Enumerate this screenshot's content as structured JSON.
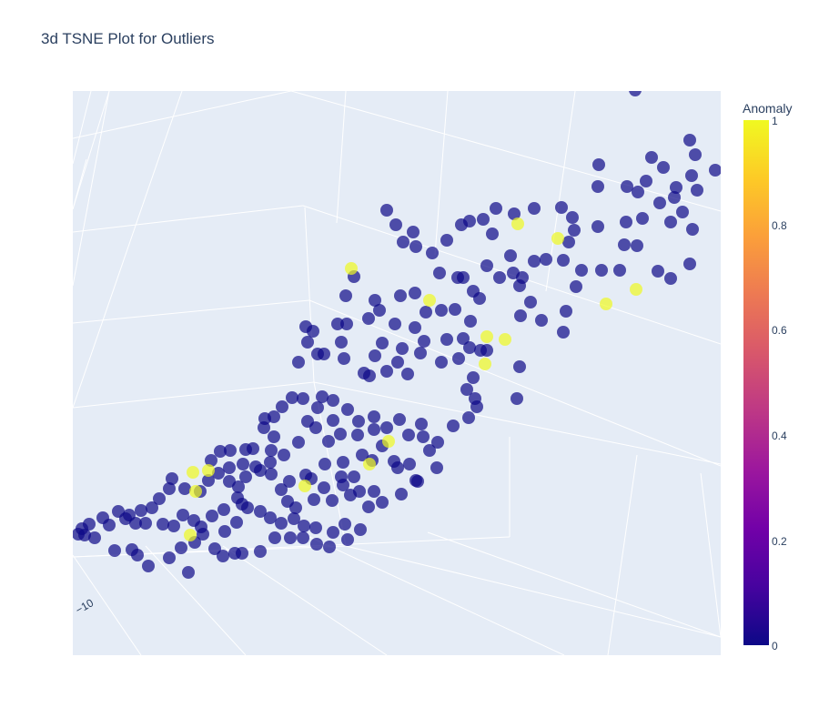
{
  "chart_data": {
    "type": "scatter",
    "title": "3d TSNE Plot for Outliers",
    "projection": "3d",
    "axis_tick_labels": [
      "−10"
    ],
    "colorscale": "plasma",
    "colorbar": {
      "title": "Anomaly",
      "range": [
        0,
        1
      ],
      "ticks": [
        "1",
        "0.8",
        "0.6",
        "0.4",
        "0.2",
        "0"
      ]
    },
    "background_color": "#e5ecf6",
    "grid": true,
    "marker_opacity": 0.7,
    "series": [
      {
        "name": "",
        "anomaly": 0,
        "points": [
          [
            698,
            99
          ],
          [
            758,
            154
          ],
          [
            716,
            173
          ],
          [
            658,
            181
          ],
          [
            729,
            184
          ],
          [
            764,
            170
          ],
          [
            786,
            187
          ],
          [
            760,
            193
          ],
          [
            710,
            199
          ],
          [
            689,
            205
          ],
          [
            657,
            205
          ],
          [
            743,
            206
          ],
          [
            766,
            209
          ],
          [
            701,
            211
          ],
          [
            741,
            217
          ],
          [
            725,
            223
          ],
          [
            750,
            233
          ],
          [
            706,
            240
          ],
          [
            688,
            244
          ],
          [
            737,
            244
          ],
          [
            761,
            252
          ],
          [
            629,
            239
          ],
          [
            617,
            228
          ],
          [
            587,
            229
          ],
          [
            631,
            253
          ],
          [
            657,
            249
          ],
          [
            625,
            266
          ],
          [
            686,
            269
          ],
          [
            700,
            270
          ],
          [
            545,
            229
          ],
          [
            516,
            243
          ],
          [
            507,
            247
          ],
          [
            541,
            257
          ],
          [
            565,
            235
          ],
          [
            531,
            241
          ],
          [
            600,
            285
          ],
          [
            587,
            287
          ],
          [
            619,
            286
          ],
          [
            639,
            297
          ],
          [
            661,
            297
          ],
          [
            681,
            297
          ],
          [
            723,
            298
          ],
          [
            737,
            306
          ],
          [
            758,
            290
          ],
          [
            633,
            315
          ],
          [
            622,
            342
          ],
          [
            595,
            352
          ],
          [
            619,
            365
          ],
          [
            572,
            347
          ],
          [
            583,
            332
          ],
          [
            571,
            314
          ],
          [
            561,
            281
          ],
          [
            535,
            292
          ],
          [
            549,
            305
          ],
          [
            564,
            300
          ],
          [
            574,
            305
          ],
          [
            503,
            305
          ],
          [
            491,
            264
          ],
          [
            475,
            278
          ],
          [
            454,
            255
          ],
          [
            443,
            266
          ],
          [
            435,
            247
          ],
          [
            425,
            231
          ],
          [
            457,
            271
          ],
          [
            389,
            304
          ],
          [
            380,
            325
          ],
          [
            412,
            330
          ],
          [
            417,
            341
          ],
          [
            440,
            325
          ],
          [
            456,
            322
          ],
          [
            483,
            300
          ],
          [
            509,
            305
          ],
          [
            520,
            320
          ],
          [
            485,
            341
          ],
          [
            500,
            340
          ],
          [
            517,
            353
          ],
          [
            527,
            328
          ],
          [
            434,
            356
          ],
          [
            468,
            343
          ],
          [
            456,
            360
          ],
          [
            466,
            375
          ],
          [
            491,
            373
          ],
          [
            509,
            372
          ],
          [
            516,
            382
          ],
          [
            528,
            385
          ],
          [
            504,
            394
          ],
          [
            485,
            398
          ],
          [
            462,
            388
          ],
          [
            442,
            383
          ],
          [
            420,
            377
          ],
          [
            412,
            391
          ],
          [
            437,
            398
          ],
          [
            448,
            411
          ],
          [
            425,
            408
          ],
          [
            406,
            413
          ],
          [
            400,
            410
          ],
          [
            375,
            376
          ],
          [
            336,
            359
          ],
          [
            349,
            389
          ],
          [
            371,
            356
          ],
          [
            381,
            356
          ],
          [
            405,
            350
          ],
          [
            378,
            394
          ],
          [
            356,
            389
          ],
          [
            328,
            398
          ],
          [
            338,
            376
          ],
          [
            344,
            364
          ],
          [
            568,
            438
          ],
          [
            571,
            403
          ],
          [
            535,
            385
          ],
          [
            520,
            415
          ],
          [
            513,
            428
          ],
          [
            522,
            438
          ],
          [
            524,
            447
          ],
          [
            515,
            459
          ],
          [
            498,
            468
          ],
          [
            481,
            486
          ],
          [
            465,
            480
          ],
          [
            449,
            478
          ],
          [
            463,
            466
          ],
          [
            439,
            461
          ],
          [
            425,
            470
          ],
          [
            411,
            458
          ],
          [
            394,
            463
          ],
          [
            382,
            450
          ],
          [
            366,
            440
          ],
          [
            354,
            436
          ],
          [
            366,
            462
          ],
          [
            338,
            463
          ],
          [
            349,
            448
          ],
          [
            333,
            438
          ],
          [
            321,
            437
          ],
          [
            310,
            447
          ],
          [
            301,
            458
          ],
          [
            291,
            460
          ],
          [
            290,
            470
          ],
          [
            301,
            480
          ],
          [
            328,
            486
          ],
          [
            347,
            470
          ],
          [
            361,
            485
          ],
          [
            374,
            477
          ],
          [
            393,
            478
          ],
          [
            411,
            472
          ],
          [
            420,
            490
          ],
          [
            398,
            500
          ],
          [
            377,
            508
          ],
          [
            357,
            510
          ],
          [
            342,
            526
          ],
          [
            356,
            536
          ],
          [
            377,
            533
          ],
          [
            395,
            540
          ],
          [
            411,
            540
          ],
          [
            441,
            543
          ],
          [
            457,
            528
          ],
          [
            450,
            510
          ],
          [
            433,
            507
          ],
          [
            409,
            506
          ],
          [
            389,
            524
          ],
          [
            375,
            524
          ],
          [
            336,
            522
          ],
          [
            318,
            529
          ],
          [
            309,
            538
          ],
          [
            298,
            521
          ],
          [
            281,
            513
          ],
          [
            270,
            524
          ],
          [
            262,
            535
          ],
          [
            252,
            529
          ],
          [
            240,
            520
          ],
          [
            229,
            528
          ],
          [
            220,
            540
          ],
          [
            203,
            537
          ],
          [
            189,
            526
          ],
          [
            186,
            537
          ],
          [
            175,
            548
          ],
          [
            167,
            558
          ],
          [
            155,
            561
          ],
          [
            142,
            566
          ],
          [
            130,
            562
          ],
          [
            120,
            577
          ],
          [
            113,
            569
          ],
          [
            98,
            576
          ],
          [
            90,
            581
          ],
          [
            104,
            591
          ],
          [
            93,
            588
          ],
          [
            86,
            587
          ],
          [
            126,
            605
          ],
          [
            145,
            604
          ],
          [
            151,
            610
          ],
          [
            163,
            622
          ],
          [
            186,
            613
          ],
          [
            207,
            629
          ],
          [
            199,
            602
          ],
          [
            214,
            596
          ],
          [
            223,
            587
          ],
          [
            236,
            603
          ],
          [
            245,
            611
          ],
          [
            258,
            608
          ],
          [
            266,
            608
          ],
          [
            286,
            606
          ],
          [
            302,
            591
          ],
          [
            319,
            591
          ],
          [
            333,
            591
          ],
          [
            348,
            598
          ],
          [
            362,
            601
          ],
          [
            382,
            593
          ],
          [
            396,
            582
          ],
          [
            379,
            576
          ],
          [
            366,
            585
          ],
          [
            347,
            580
          ],
          [
            334,
            578
          ],
          [
            323,
            570
          ],
          [
            309,
            575
          ],
          [
            297,
            569
          ],
          [
            286,
            562
          ],
          [
            272,
            558
          ],
          [
            261,
            547
          ],
          [
            246,
            560
          ],
          [
            233,
            567
          ],
          [
            221,
            579
          ],
          [
            213,
            572
          ],
          [
            201,
            566
          ],
          [
            191,
            578
          ],
          [
            179,
            576
          ],
          [
            160,
            575
          ],
          [
            149,
            575
          ],
          [
            138,
            570
          ],
          [
            232,
            506
          ],
          [
            242,
            496
          ],
          [
            252,
            514
          ],
          [
            267,
            510
          ],
          [
            278,
            493
          ],
          [
            298,
            495
          ],
          [
            312,
            500
          ],
          [
            297,
            508
          ],
          [
            286,
            517
          ],
          [
            316,
            551
          ],
          [
            325,
            558
          ],
          [
            345,
            549
          ],
          [
            365,
            550
          ],
          [
            385,
            544
          ],
          [
            405,
            557
          ],
          [
            420,
            552
          ],
          [
            472,
            495
          ],
          [
            480,
            514
          ],
          [
            459,
            529
          ],
          [
            437,
            514
          ],
          [
            270,
            494
          ],
          [
            253,
            495
          ],
          [
            266,
            554
          ],
          [
            247,
            584
          ],
          [
            260,
            574
          ]
        ]
      },
      {
        "name": "",
        "anomaly": 1,
        "points": [
          [
            569,
            246
          ],
          [
            613,
            262
          ],
          [
            386,
            295
          ],
          [
            472,
            330
          ],
          [
            535,
            370
          ],
          [
            555,
            373
          ],
          [
            533,
            400
          ],
          [
            699,
            318
          ],
          [
            666,
            334
          ],
          [
            427,
            485
          ],
          [
            406,
            510
          ],
          [
            335,
            534
          ],
          [
            212,
            519
          ],
          [
            215,
            540
          ],
          [
            209,
            588
          ],
          [
            229,
            517
          ]
        ]
      }
    ]
  }
}
